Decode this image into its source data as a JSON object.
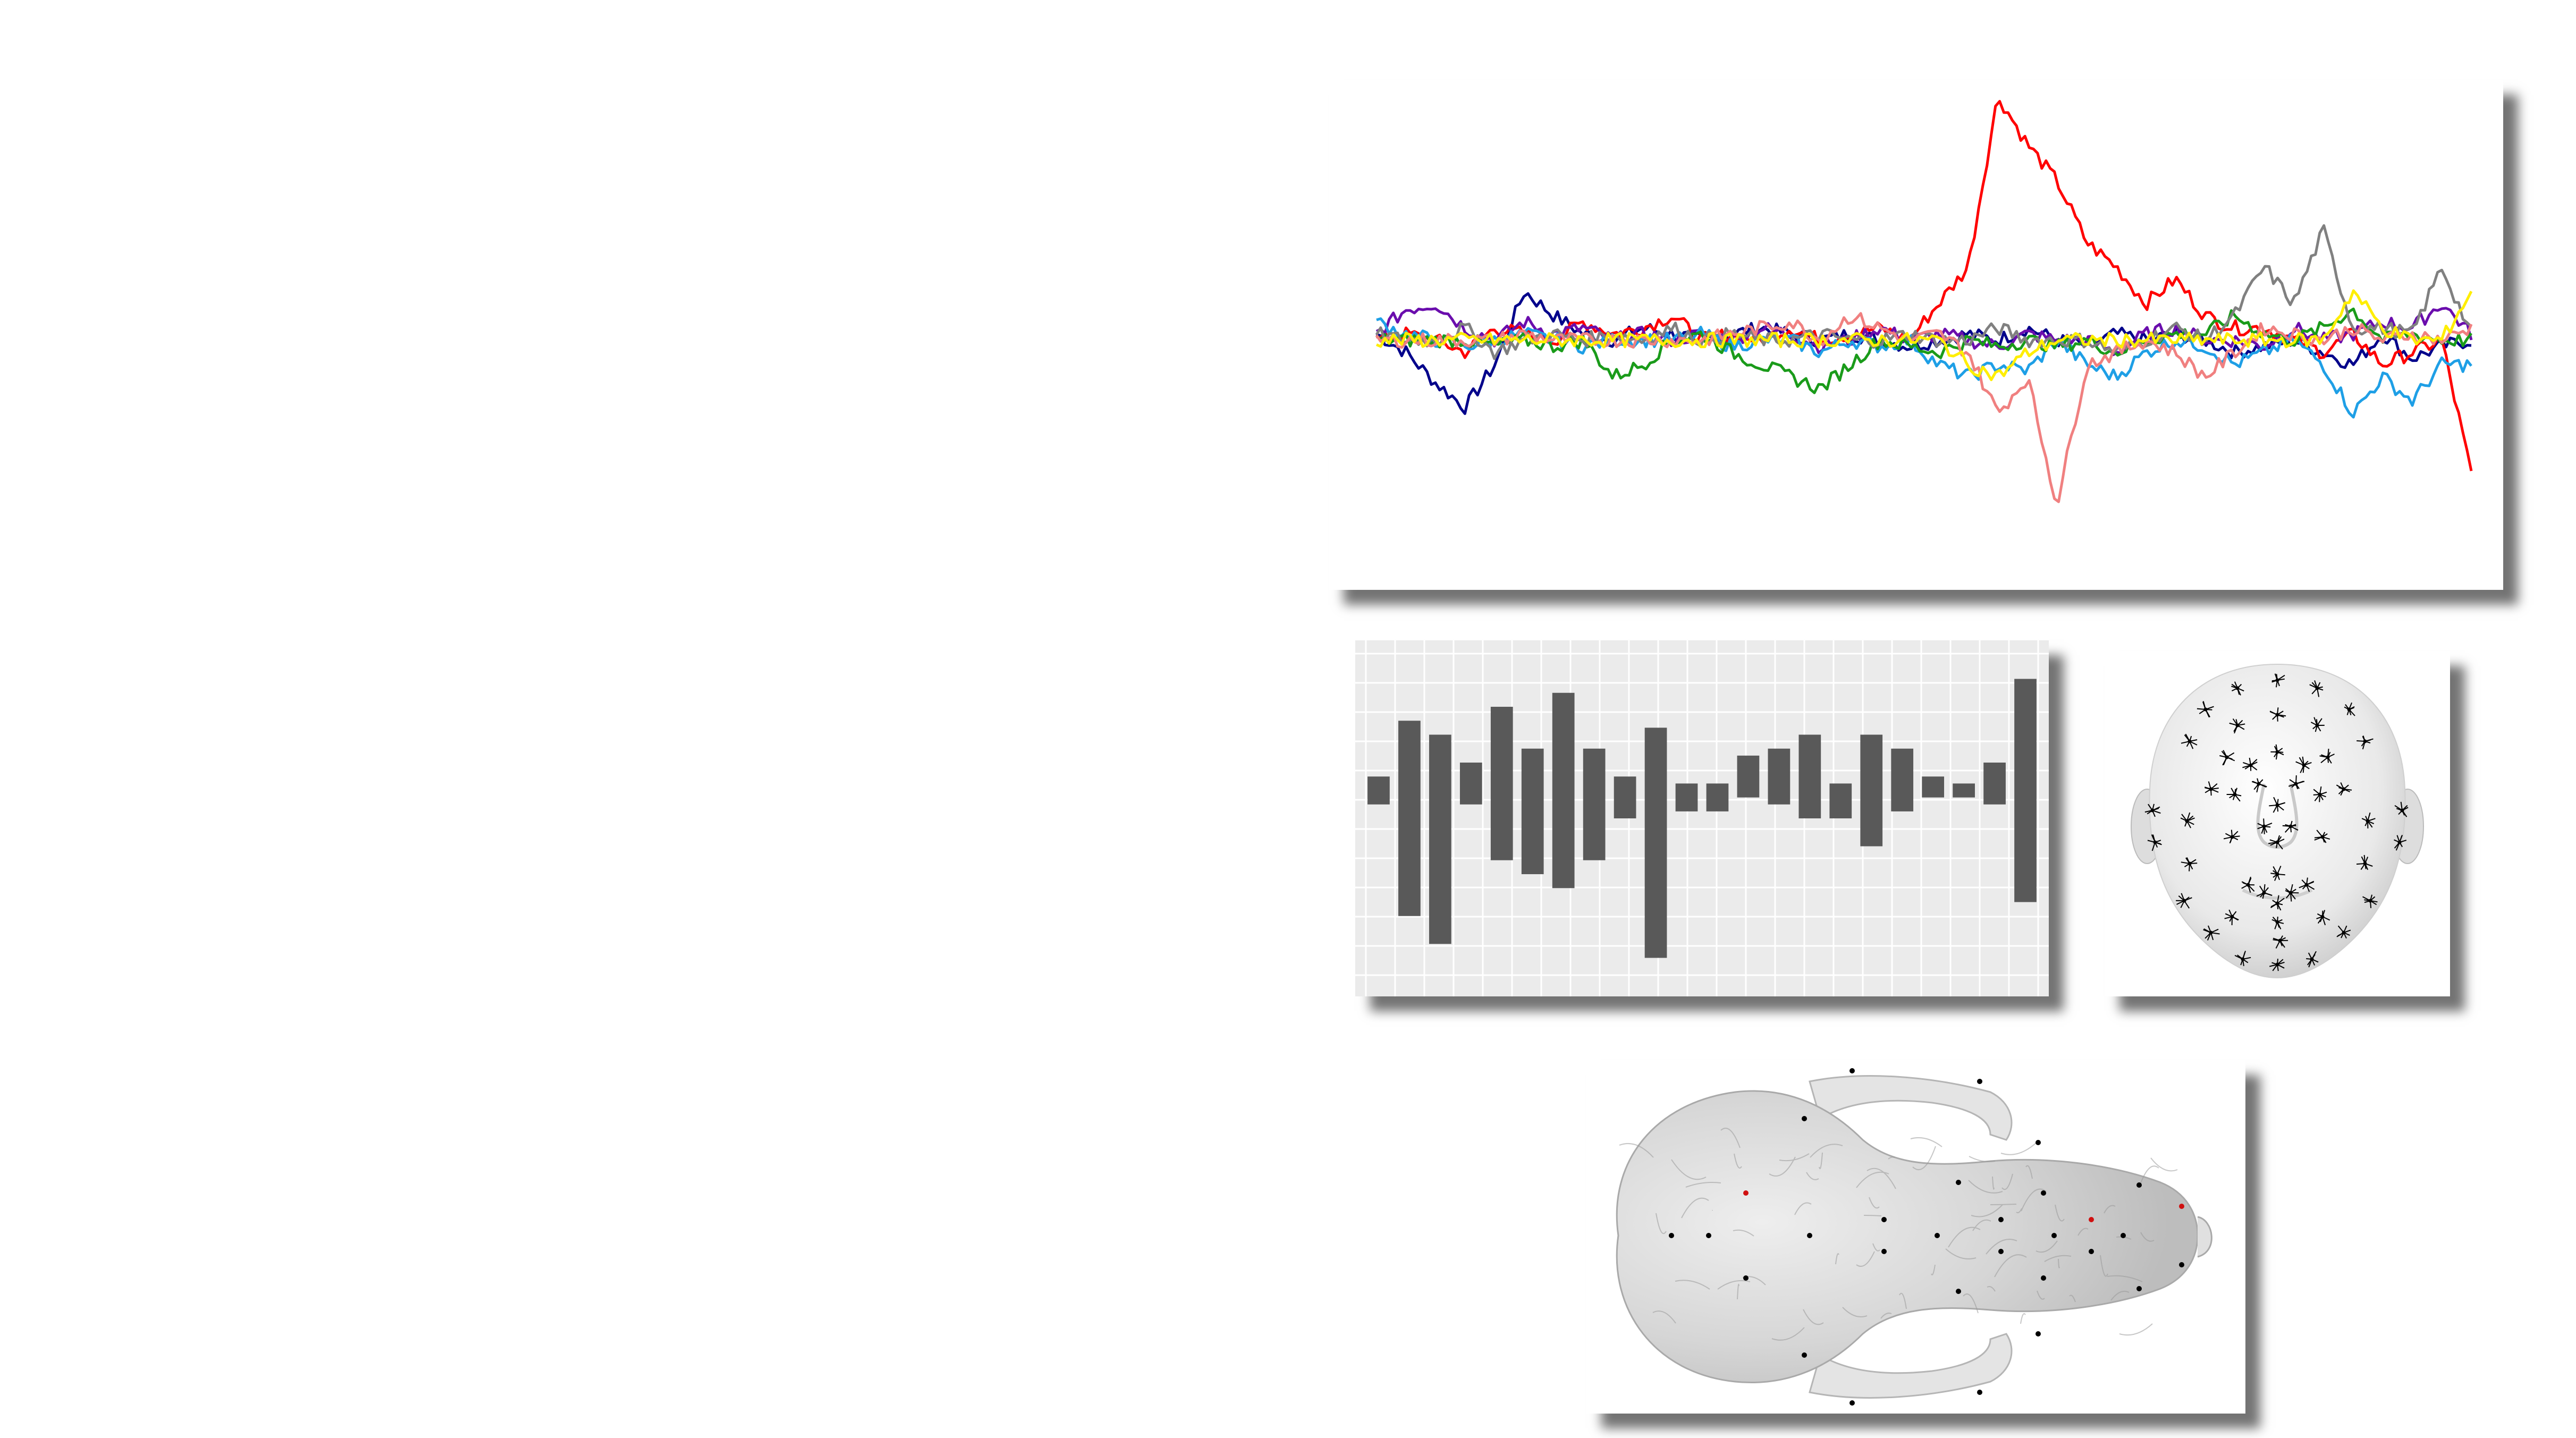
{
  "figure": {
    "line_panel": {
      "series_colors": [
        "#ff0000",
        "#00008b",
        "#6a0dad",
        "#1e9fe6",
        "#1a9b1a",
        "#808080",
        "#f08080",
        "#ffee00"
      ]
    },
    "bar_panel": {
      "bar_color": "#595959",
      "background": "#ebebeb",
      "grid_color": "#ffffff"
    },
    "face_panel": {
      "mesh_color": "#e6e6e6",
      "landmark_color": "#000000"
    },
    "skull_panel": {
      "mesh_color": "#d9d9d9",
      "landmark_color": "#000000",
      "accent_landmark_color": "#d01010"
    }
  },
  "chart_data": [
    {
      "type": "line",
      "series": [
        {
          "color": "#00008b",
          "values": [
            0.05,
            -0.1,
            -0.35,
            -0.55,
            -0.2,
            0.4,
            0.2,
            0.05,
            0.0,
            0.1,
            0.05,
            0.0,
            0.05,
            0.1,
            0.05,
            0.0,
            0.05,
            0.0,
            -0.05,
            0.0,
            0.05,
            0.0,
            0.1,
            0.0,
            -0.05,
            0.05,
            0.0,
            0.05,
            0.0,
            -0.1,
            -0.05,
            0.0,
            -0.1,
            -0.2,
            0.05,
            -0.15,
            -0.05,
            0.0
          ]
        },
        {
          "color": "#ff0000",
          "values": [
            0.0,
            0.05,
            0.0,
            -0.1,
            0.1,
            0.05,
            0.0,
            0.15,
            0.05,
            0.1,
            0.2,
            0.0,
            0.05,
            0.0,
            0.1,
            0.0,
            0.05,
            0.1,
            0.0,
            0.3,
            0.6,
            2.0,
            1.6,
            1.3,
            0.8,
            0.6,
            0.3,
            0.5,
            0.2,
            0.1,
            0.1,
            0.0,
            -0.1,
            0.05,
            -0.2,
            -0.1,
            0.0,
            -1.1
          ]
        },
        {
          "color": "#6a0dad",
          "values": [
            0.05,
            0.25,
            0.3,
            0.1,
            0.0,
            0.15,
            0.05,
            0.1,
            0.0,
            0.05,
            0.0,
            0.05,
            0.0,
            0.1,
            0.05,
            -0.05,
            0.0,
            0.1,
            0.0,
            0.05,
            0.0,
            -0.05,
            0.05,
            0.0,
            0.0,
            -0.1,
            0.05,
            0.1,
            0.0,
            0.0,
            -0.05,
            0.1,
            0.0,
            0.05,
            0.15,
            0.1,
            0.3,
            0.05
          ]
        },
        {
          "color": "#1e9fe6",
          "values": [
            0.15,
            0.05,
            0.0,
            -0.05,
            0.0,
            0.05,
            0.0,
            -0.05,
            0.0,
            0.0,
            0.0,
            0.05,
            -0.05,
            0.0,
            0.0,
            -0.1,
            0.0,
            -0.05,
            0.0,
            -0.2,
            -0.3,
            -0.2,
            -0.25,
            0.0,
            -0.2,
            -0.3,
            -0.1,
            0.0,
            -0.05,
            -0.2,
            -0.1,
            0.0,
            -0.2,
            -0.6,
            -0.3,
            -0.5,
            -0.2,
            -0.2
          ]
        },
        {
          "color": "#1a9b1a",
          "values": [
            0.0,
            0.0,
            0.0,
            0.0,
            -0.05,
            0.0,
            -0.05,
            0.0,
            -0.3,
            -0.2,
            0.0,
            0.05,
            -0.1,
            -0.2,
            -0.3,
            -0.4,
            -0.2,
            0.0,
            -0.05,
            -0.1,
            0.0,
            -0.05,
            0.0,
            -0.05,
            0.0,
            -0.1,
            0.0,
            0.05,
            0.05,
            0.2,
            0.05,
            0.0,
            0.1,
            0.25,
            0.0,
            0.05,
            0.0,
            0.0
          ]
        },
        {
          "color": "#808080",
          "values": [
            0.05,
            0.0,
            0.0,
            0.1,
            -0.1,
            0.0,
            0.05,
            0.0,
            0.05,
            0.0,
            0.1,
            0.0,
            0.05,
            0.0,
            0.0,
            0.05,
            0.0,
            0.0,
            0.05,
            0.0,
            0.0,
            0.1,
            0.0,
            0.0,
            0.0,
            -0.1,
            0.0,
            0.1,
            0.0,
            0.2,
            0.6,
            0.3,
            0.9,
            0.1,
            0.1,
            0.05,
            0.6,
            0.05
          ]
        },
        {
          "color": "#f08080",
          "values": [
            0.0,
            0.0,
            0.0,
            0.0,
            0.0,
            0.05,
            0.0,
            0.0,
            0.0,
            0.0,
            0.0,
            0.0,
            0.05,
            0.1,
            0.15,
            0.0,
            0.2,
            0.1,
            0.0,
            0.05,
            -0.1,
            -0.6,
            -0.3,
            -1.35,
            -0.2,
            -0.1,
            0.0,
            -0.1,
            -0.3,
            -0.1,
            0.1,
            0.05,
            0.0,
            0.1,
            0.0,
            0.05,
            0.0,
            0.1
          ]
        },
        {
          "color": "#ffee00",
          "values": [
            0.0,
            0.0,
            0.0,
            0.0,
            0.0,
            0.0,
            0.0,
            0.0,
            0.0,
            0.0,
            0.0,
            0.0,
            0.0,
            0.0,
            0.0,
            0.0,
            0.0,
            0.0,
            0.0,
            0.0,
            -0.2,
            -0.3,
            -0.1,
            0.0,
            0.0,
            0.0,
            0.0,
            0.0,
            0.0,
            0.0,
            0.0,
            0.0,
            0.0,
            0.4,
            0.1,
            0.0,
            0.0,
            0.4
          ]
        }
      ]
    },
    {
      "type": "bar",
      "values": [
        [
          -0.1,
          0.1
        ],
        [
          -0.9,
          0.5
        ],
        [
          -1.1,
          0.4
        ],
        [
          -0.1,
          0.2
        ],
        [
          -0.5,
          0.6
        ],
        [
          -0.6,
          0.3
        ],
        [
          -0.7,
          0.7
        ],
        [
          -0.5,
          0.3
        ],
        [
          -0.2,
          0.1
        ],
        [
          -1.2,
          0.45
        ],
        [
          -0.15,
          0.05
        ],
        [
          -0.15,
          0.05
        ],
        [
          -0.05,
          0.25
        ],
        [
          -0.1,
          0.3
        ],
        [
          -0.2,
          0.4
        ],
        [
          -0.2,
          0.05
        ],
        [
          -0.4,
          0.4
        ],
        [
          -0.15,
          0.3
        ],
        [
          -0.05,
          0.1
        ],
        [
          -0.05,
          0.05
        ],
        [
          -0.1,
          0.2
        ],
        [
          -0.8,
          0.8
        ]
      ],
      "ylim": [
        -1.4,
        1.0
      ]
    }
  ]
}
